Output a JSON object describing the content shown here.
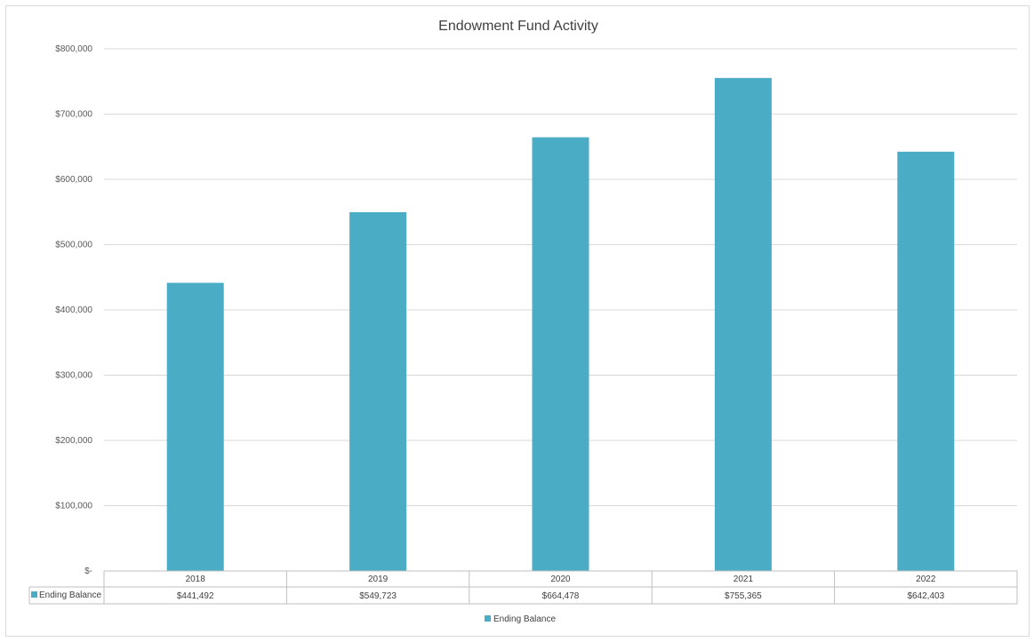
{
  "chart_data": {
    "type": "bar",
    "title": "Endowment Fund Activity",
    "categories": [
      "2018",
      "2019",
      "2020",
      "2021",
      "2022"
    ],
    "series": [
      {
        "name": "Ending Balance",
        "values": [
          441492,
          549723,
          664478,
          755365,
          642403
        ],
        "value_labels": [
          "$441,492",
          "$549,723",
          "$664,478",
          "$755,365",
          "$642,403"
        ],
        "color": "#4BACC6"
      }
    ],
    "ylim": [
      0,
      800000
    ],
    "y_ticks": [
      {
        "value": 0,
        "label": "$-"
      },
      {
        "value": 100000,
        "label": "$100,000"
      },
      {
        "value": 200000,
        "label": "$200,000"
      },
      {
        "value": 300000,
        "label": "$300,000"
      },
      {
        "value": 400000,
        "label": "$400,000"
      },
      {
        "value": 500000,
        "label": "$500,000"
      },
      {
        "value": 600000,
        "label": "$600,000"
      },
      {
        "value": 700000,
        "label": "$700,000"
      },
      {
        "value": 800000,
        "label": "$800,000"
      }
    ],
    "grid": true,
    "legend_position": "bottom",
    "data_table": true,
    "colors": {
      "gridline": "#d9d9d9",
      "axis_text": "#595959",
      "table_border": "#bfbfbf"
    }
  }
}
